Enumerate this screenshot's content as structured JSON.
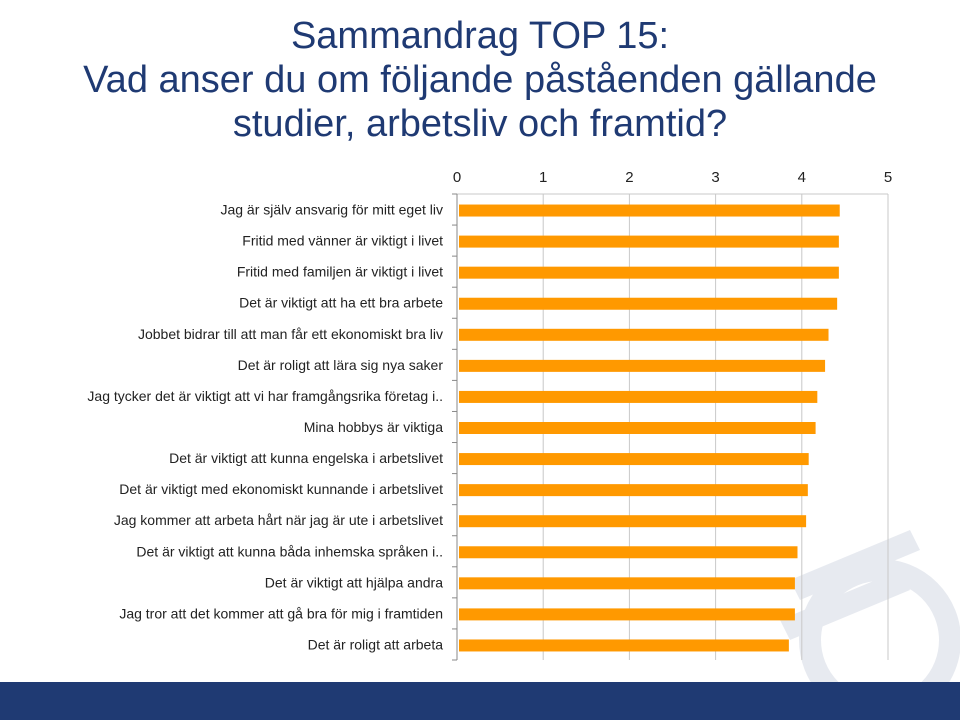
{
  "title_lines": [
    "Sammandrag TOP 15:",
    "Vad anser du om följande påståenden gällande",
    "studier, arbetsliv och framtid?"
  ],
  "colors": {
    "bar": "#ff9900",
    "title": "#1f3a73",
    "footer": "#1f3a73"
  },
  "chart_data": {
    "type": "bar",
    "orientation": "horizontal",
    "title": "",
    "xlabel": "",
    "ylabel": "",
    "xlim": [
      0,
      5
    ],
    "ticks": [
      "0",
      "1",
      "2",
      "3",
      "4",
      "5"
    ],
    "grid": true,
    "categories": [
      "Jag är själv ansvarig för mitt eget liv",
      "Fritid med vänner är viktigt i livet",
      "Fritid med familjen är viktigt i livet",
      "Det är viktigt att ha ett bra arbete",
      "Jobbet bidrar till att man får ett ekonomiskt bra liv",
      "Det är roligt att lära sig nya saker",
      "Jag tycker det är viktigt att vi har framgångsrika företag i..",
      "Mina hobbys är viktiga",
      "Det är viktigt att kunna engelska i arbetslivet",
      "Det är viktigt med ekonomiskt kunnande i arbetslivet",
      "Jag kommer att arbeta hårt när jag är ute i arbetslivet",
      "Det är viktigt att kunna båda inhemska språken i..",
      "Det är viktigt att hjälpa andra",
      "Jag tror att det kommer att gå bra för mig i framtiden",
      "Det är roligt att arbeta"
    ],
    "values": [
      4.44,
      4.43,
      4.43,
      4.41,
      4.31,
      4.27,
      4.18,
      4.16,
      4.08,
      4.07,
      4.05,
      3.95,
      3.92,
      3.92,
      3.85
    ]
  }
}
